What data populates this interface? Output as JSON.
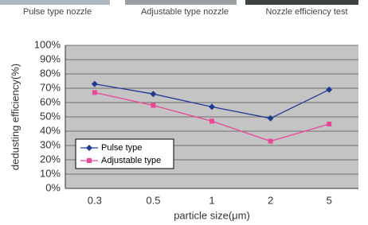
{
  "captions": [
    "Pulse type nozzle",
    "Adjustable type nozzle",
    "Nozzle efficiency test"
  ],
  "chart_data": {
    "type": "line",
    "x_label": "particle size(μm)",
    "y_label": "dedusting efficiency(%)",
    "categories": [
      "0.3",
      "0.5",
      "1",
      "2",
      "5"
    ],
    "series": [
      {
        "name": "Pulse type",
        "color": "#1f3a93",
        "values": [
          73,
          66,
          57,
          49,
          69
        ]
      },
      {
        "name": "Adjustable type",
        "color": "#e8479a",
        "values": [
          67,
          58,
          47,
          33,
          45
        ]
      }
    ],
    "ylim": [
      0,
      100
    ],
    "yticks": [
      {
        "value": 0,
        "label": "0%"
      },
      {
        "value": 10,
        "label": "10%"
      },
      {
        "value": 20,
        "label": "20%"
      },
      {
        "value": 30,
        "label": "30%"
      },
      {
        "value": 40,
        "label": "40%"
      },
      {
        "value": 50,
        "label": "50%"
      },
      {
        "value": 60,
        "label": "60%"
      },
      {
        "value": 70,
        "label": "70%"
      },
      {
        "value": 80,
        "label": "80%"
      },
      {
        "value": 90,
        "label": "90%"
      },
      {
        "value": 100,
        "label": "100%"
      }
    ],
    "grid": true
  }
}
